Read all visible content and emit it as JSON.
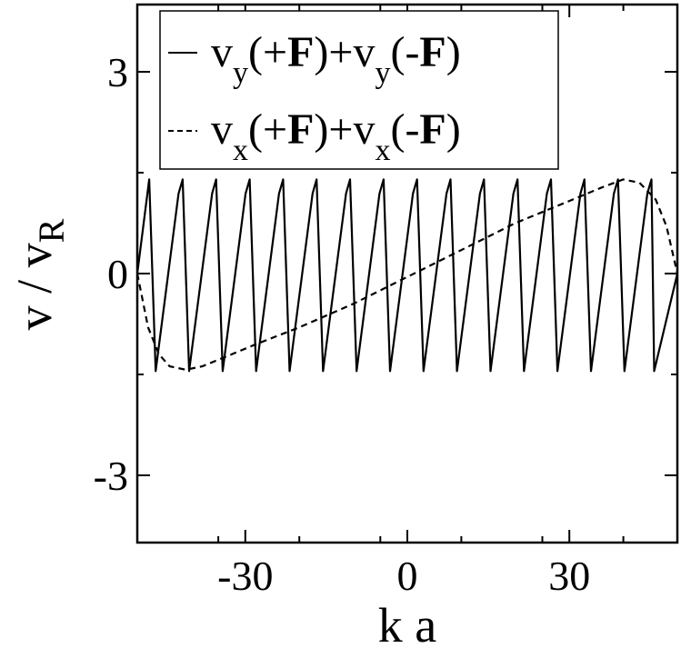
{
  "chart_data": {
    "type": "line",
    "xlabel": "k a",
    "ylabel_main": "v / v",
    "ylabel_sub": "R",
    "xlim": [
      -50,
      50
    ],
    "ylim": [
      -4,
      4
    ],
    "xticks": [
      -30,
      0,
      30
    ],
    "xtick_labels": [
      "-30",
      "0",
      "30"
    ],
    "yticks": [
      -3,
      0,
      3
    ],
    "ytick_labels": [
      "-3",
      "0",
      "3"
    ],
    "grid": false,
    "legend_position": "top",
    "legend": [
      {
        "style": "solid",
        "v1": "v",
        "s1": "y",
        "o1": "(+",
        "b1": "F",
        "c1": ")+",
        "v2": "v",
        "s2": "y",
        "o2": "(-",
        "b2": "F",
        "c2": ")"
      },
      {
        "style": "dashed",
        "v1": "v",
        "s1": "x",
        "o1": "(+",
        "b1": "F",
        "c1": ")+",
        "v2": "v",
        "s2": "x",
        "o2": "(-",
        "b2": "F",
        "c2": ")"
      }
    ],
    "series": [
      {
        "style": "solid",
        "period": 6.2,
        "x_start": -50,
        "x_end": 50,
        "y_max": 1.4,
        "y_min": -1.45,
        "first_rise_end": -47.8,
        "description_points": [
          [
            -50,
            0
          ],
          [
            -47.8,
            1.4
          ],
          [
            -46.6,
            -1.4
          ],
          [
            -44.1,
            1.4
          ],
          [
            -43.3,
            -1.4
          ],
          [
            -37.6,
            -1.4
          ],
          [
            -35.0,
            1.4
          ],
          [
            0,
            0
          ],
          [
            47.5,
            1.4
          ],
          [
            48.0,
            -1.45
          ],
          [
            50,
            0
          ]
        ]
      },
      {
        "style": "dashed",
        "points": [
          [
            -50,
            0
          ],
          [
            -48,
            -0.8
          ],
          [
            -46,
            -1.2
          ],
          [
            -44,
            -1.38
          ],
          [
            -41,
            -1.43
          ],
          [
            -38,
            -1.38
          ],
          [
            -34,
            -1.25
          ],
          [
            -28,
            -1.05
          ],
          [
            -20,
            -0.8
          ],
          [
            -10,
            -0.45
          ],
          [
            0,
            -0.05
          ],
          [
            10,
            0.35
          ],
          [
            20,
            0.75
          ],
          [
            30,
            1.08
          ],
          [
            36,
            1.28
          ],
          [
            40,
            1.4
          ],
          [
            43,
            1.35
          ],
          [
            46,
            1.1
          ],
          [
            48,
            0.7
          ],
          [
            50,
            0
          ]
        ]
      }
    ]
  }
}
